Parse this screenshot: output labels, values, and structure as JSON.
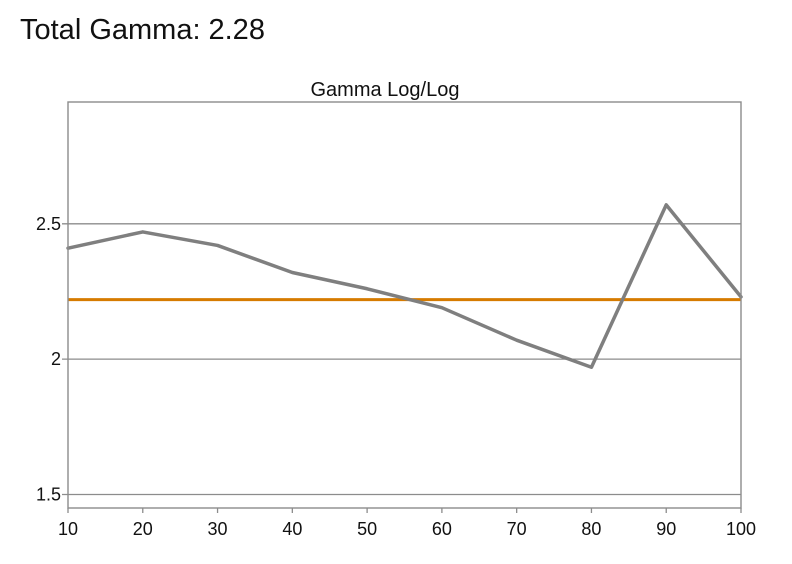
{
  "header": {
    "label": "Total Gamma:",
    "value": "2.28"
  },
  "chart_data": {
    "type": "line",
    "title": "Gamma Log/Log",
    "xlabel": "",
    "ylabel": "",
    "x": [
      10,
      20,
      30,
      40,
      50,
      60,
      70,
      80,
      90,
      100
    ],
    "xlim": [
      10,
      100
    ],
    "ylim": [
      1.45,
      2.95
    ],
    "grid": true,
    "x_ticks": [
      "10",
      "20",
      "30",
      "40",
      "50",
      "60",
      "70",
      "80",
      "90",
      "100"
    ],
    "y_ticks": [
      {
        "value": 1.5,
        "label": "1.5"
      },
      {
        "value": 2,
        "label": "2"
      },
      {
        "value": 2.5,
        "label": "2.5"
      }
    ],
    "series": [
      {
        "values": [
          2.41,
          2.47,
          2.42,
          2.32,
          2.26,
          2.19,
          2.07,
          1.97,
          2.57,
          2.23
        ],
        "color": "#7f7f7f"
      }
    ],
    "reference_line": {
      "value": 2.22,
      "color": "#d67b00"
    }
  }
}
